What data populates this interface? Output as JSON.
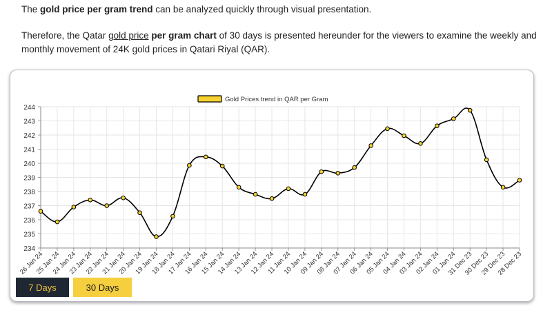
{
  "intro": {
    "p1_pre": "The ",
    "p1_bold": "gold price per gram trend",
    "p1_post": " can be analyzed quickly through visual presentation.",
    "p2_pre": "Therefore, the Qatar ",
    "p2_link": "gold price",
    "p2_space": " ",
    "p2_bold": "per gram chart",
    "p2_post": " of 30 days is presented hereunder for the viewers to examine the weekly and monthly movement of 24K gold prices in Qatari Riyal (QAR)."
  },
  "buttons": {
    "seven": "7 Days",
    "thirty": "30 Days"
  },
  "colors": {
    "line": "#000000",
    "marker": "#f5d230",
    "grid": "#e6e6e6",
    "active": "#1f2733",
    "accent": "#f5cf3d"
  },
  "chart_data": {
    "type": "line",
    "legend": "Gold Prices trend in QAR per Gram",
    "legend_position": "top-center",
    "grid": true,
    "ylim": [
      234,
      244
    ],
    "yticks": [
      234,
      235,
      236,
      237,
      238,
      239,
      240,
      241,
      242,
      243,
      244
    ],
    "categories": [
      "26 Jan 24",
      "25 Jan 24",
      "24 Jan 24",
      "23 Jan 24",
      "22 Jan 24",
      "21 Jan 24",
      "20 Jan 24",
      "19 Jan 24",
      "18 Jan 24",
      "17 Jan 24",
      "16 Jan 24",
      "15 Jan 24",
      "14 Jan 24",
      "13 Jan 24",
      "12 Jan 24",
      "11 Jan 24",
      "10 Jan 24",
      "09 Jan 24",
      "08 Jan 24",
      "07 Jan 24",
      "06 Jan 24",
      "05 Jan 24",
      "04 Jan 24",
      "03 Jan 24",
      "02 Jan 24",
      "01 Jan 24",
      "31 Dec 23",
      "30 Dec 23",
      "29 Dec 23",
      "28 Dec 23"
    ],
    "values": [
      236.6,
      235.85,
      236.9,
      237.4,
      237.0,
      237.55,
      236.5,
      234.8,
      236.25,
      239.85,
      240.45,
      239.8,
      238.3,
      237.8,
      237.5,
      238.2,
      237.8,
      239.4,
      239.3,
      239.7,
      241.25,
      242.45,
      241.95,
      241.4,
      242.65,
      243.15,
      243.75,
      240.25,
      238.3,
      238.8
    ]
  }
}
